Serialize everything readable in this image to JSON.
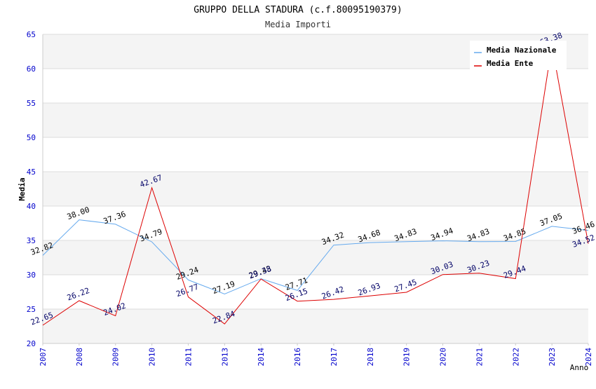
{
  "chart_data": {
    "type": "line",
    "title": "GRUPPO DELLA STADURA (c.f.80095190379)",
    "subtitle": "Media Importi",
    "ylabel": "Media",
    "xlabel": "Anno",
    "ylim": [
      20,
      65
    ],
    "yticks": [
      20,
      25,
      30,
      35,
      40,
      45,
      50,
      55,
      60,
      65
    ],
    "categories": [
      "2007",
      "2008",
      "2009",
      "2010",
      "2011",
      "2013",
      "2014",
      "2016",
      "2017",
      "2018",
      "2019",
      "2020",
      "2021",
      "2022",
      "2023",
      "2024"
    ],
    "grid": true,
    "legend_position": "top-right",
    "series": [
      {
        "name": "Media Nazionale",
        "color": "#66aaee",
        "values": [
          32.82,
          38.0,
          37.36,
          34.79,
          29.24,
          27.19,
          29.43,
          27.71,
          34.32,
          34.68,
          34.83,
          34.94,
          34.83,
          34.85,
          37.05,
          36.46
        ],
        "labels": [
          "32.82",
          "38.00",
          "37.36",
          "34.79",
          "29.24",
          "27.19",
          "29.43",
          "27.71",
          "34.32",
          "34.68",
          "34.83",
          "34.94",
          "34.83",
          "34.85",
          "37.05",
          "36.46"
        ]
      },
      {
        "name": "Media Ente",
        "color": "#dd0000",
        "values": [
          22.65,
          26.22,
          24.02,
          42.67,
          26.77,
          22.84,
          29.38,
          26.15,
          26.42,
          26.93,
          27.45,
          30.03,
          30.23,
          29.44,
          63.38,
          34.52
        ],
        "labels": [
          "22.65",
          "26.22",
          "24.02",
          "42.67",
          "26.77",
          "22.84",
          "29.38",
          "26.15",
          "26.42",
          "26.93",
          "27.45",
          "30.03",
          "30.23",
          "29.44",
          "63.38",
          "34.52"
        ]
      }
    ]
  }
}
